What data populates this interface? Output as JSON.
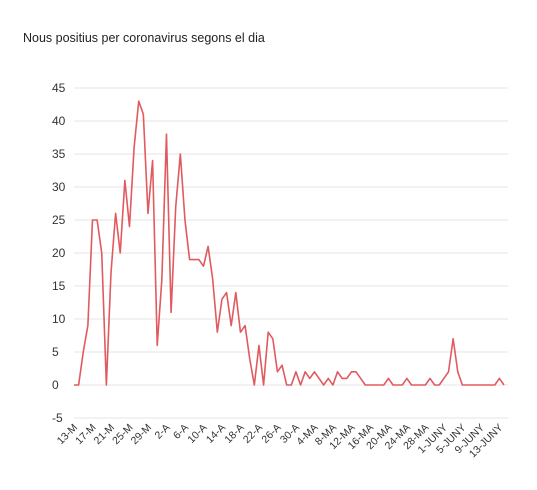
{
  "chart_data": {
    "type": "line",
    "title": "Nous positius per coronavirus segons el dia",
    "xlabel": "",
    "ylabel": "",
    "ylim": [
      -5,
      45
    ],
    "yticks": [
      -5,
      0,
      5,
      10,
      15,
      20,
      25,
      30,
      35,
      40,
      45
    ],
    "grid": true,
    "legend": "none",
    "series_color": "#e05a5f",
    "tick_labels": [
      "13-M",
      "17-M",
      "21-M",
      "25-M",
      "29-M",
      "2-A",
      "6-A",
      "10-A",
      "14-A",
      "18-A",
      "22-A",
      "26-A",
      "30-A",
      "4-MA",
      "8-MA",
      "12-MA",
      "16-MA",
      "20-MA",
      "24-MA",
      "28-MA",
      "1-JUNY",
      "5-JUNY",
      "9-JUNY",
      "13-JUNY"
    ],
    "x": [
      "13-M",
      "14-M",
      "15-M",
      "16-M",
      "17-M",
      "18-M",
      "19-M",
      "20-M",
      "21-M",
      "22-M",
      "23-M",
      "24-M",
      "25-M",
      "26-M",
      "27-M",
      "28-M",
      "29-M",
      "30-M",
      "31-M",
      "1-A",
      "2-A",
      "3-A",
      "4-A",
      "5-A",
      "6-A",
      "7-A",
      "8-A",
      "9-A",
      "10-A",
      "11-A",
      "12-A",
      "13-A",
      "14-A",
      "15-A",
      "16-A",
      "17-A",
      "18-A",
      "19-A",
      "20-A",
      "21-A",
      "22-A",
      "23-A",
      "24-A",
      "25-A",
      "26-A",
      "27-A",
      "28-A",
      "29-A",
      "30-A",
      "1-MA",
      "2-MA",
      "3-MA",
      "4-MA",
      "5-MA",
      "6-MA",
      "7-MA",
      "8-MA",
      "9-MA",
      "10-MA",
      "11-MA",
      "12-MA",
      "13-MA",
      "14-MA",
      "15-MA",
      "16-MA",
      "17-MA",
      "18-MA",
      "19-MA",
      "20-MA",
      "21-MA",
      "22-MA",
      "23-MA",
      "24-MA",
      "25-MA",
      "26-MA",
      "27-MA",
      "28-MA",
      "29-MA",
      "30-MA",
      "31-MA",
      "1-JUNY",
      "2-JUNY",
      "3-JUNY",
      "4-JUNY",
      "5-JUNY",
      "6-JUNY",
      "7-JUNY",
      "8-JUNY",
      "9-JUNY",
      "10-JUNY",
      "11-JUNY",
      "12-JUNY",
      "13-JUNY",
      "14-JUNY"
    ],
    "series": [
      {
        "values": [
          0,
          0,
          5,
          9,
          25,
          25,
          20,
          0,
          17,
          26,
          20,
          31,
          24,
          36,
          43,
          41,
          26,
          34,
          6,
          16,
          38,
          11,
          27,
          35,
          25,
          19,
          19,
          19,
          18,
          21,
          16,
          8,
          13,
          14,
          9,
          14,
          8,
          9,
          4,
          0,
          6,
          0,
          8,
          7,
          2,
          3,
          0,
          0,
          2,
          0,
          2,
          1,
          2,
          1,
          0,
          1,
          0,
          2,
          1,
          1,
          2,
          2,
          1,
          0,
          0,
          0,
          0,
          0,
          1,
          0,
          0,
          0,
          1,
          0,
          0,
          0,
          0,
          1,
          0,
          0,
          1,
          2,
          7,
          2,
          0,
          0,
          0,
          0,
          0,
          0,
          0,
          0,
          1,
          0
        ]
      }
    ]
  }
}
